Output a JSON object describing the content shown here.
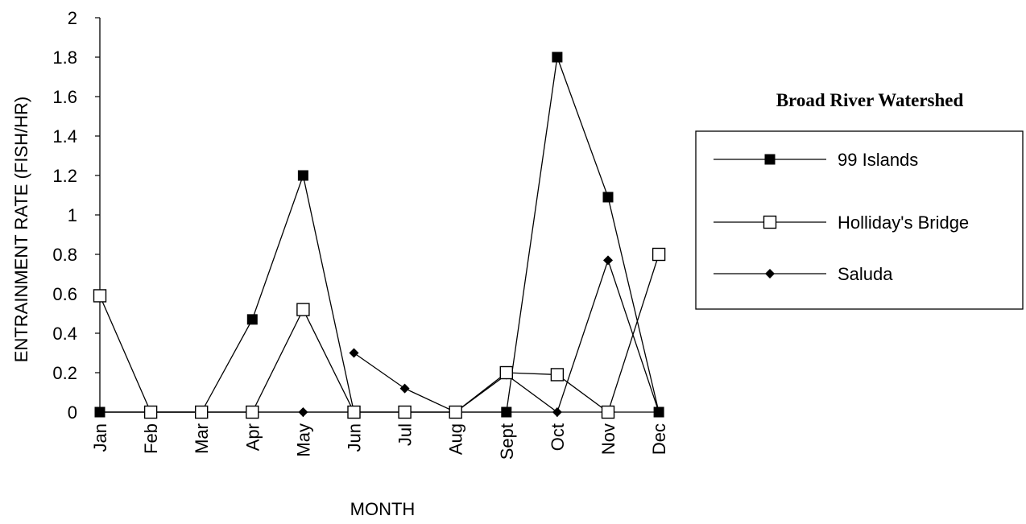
{
  "chart_data": {
    "type": "line",
    "title": "",
    "xlabel": "MONTH",
    "ylabel": "ENTRAINMENT RATE (FISH/HR)",
    "ylim": [
      0,
      2
    ],
    "yticks": [
      "0",
      "0.2",
      "0.4",
      "0.6",
      "0.8",
      "1",
      "1.2",
      "1.4",
      "1.6",
      "1.8",
      "2"
    ],
    "categories": [
      "Jan",
      "Feb",
      "Mar",
      "Apr",
      "May",
      "Jun",
      "Jul",
      "Aug",
      "Sept",
      "Oct",
      "Nov",
      "Dec"
    ],
    "legend_title": "Broad River Watershed",
    "legend_position": "right",
    "series": [
      {
        "name": "99 Islands",
        "marker": "filled-square",
        "segments": [
          [
            [
              0,
              0
            ],
            [
              1,
              0
            ],
            [
              2,
              0
            ],
            [
              3,
              0.47
            ],
            [
              4,
              1.2
            ],
            [
              5,
              0
            ],
            [
              6,
              0
            ],
            [
              7,
              0
            ],
            [
              8,
              0
            ],
            [
              9,
              1.8
            ],
            [
              10,
              1.09
            ],
            [
              11,
              0
            ]
          ]
        ]
      },
      {
        "name": "Holliday's Bridge",
        "marker": "open-square",
        "segments": [
          [
            [
              0,
              0.59
            ],
            [
              1,
              0
            ],
            [
              2,
              0
            ],
            [
              3,
              0
            ],
            [
              4,
              0.52
            ],
            [
              5,
              0
            ],
            [
              6,
              0
            ],
            [
              7,
              0
            ],
            [
              8,
              0.2
            ],
            [
              9,
              0.19
            ],
            [
              10,
              0
            ],
            [
              11,
              0.8
            ]
          ]
        ]
      },
      {
        "name": "Saluda",
        "marker": "filled-diamond",
        "segments": [
          [
            [
              0,
              0
            ],
            [
              1,
              0
            ],
            [
              2,
              0
            ],
            [
              3,
              0
            ],
            [
              4,
              0
            ],
            [
              5,
              0
            ]
          ],
          [
            [
              5,
              0.3
            ],
            [
              6,
              0.12
            ],
            [
              7,
              0
            ],
            [
              8,
              0.19
            ],
            [
              9,
              0
            ],
            [
              10,
              0.77
            ],
            [
              11,
              0
            ]
          ]
        ]
      }
    ]
  }
}
